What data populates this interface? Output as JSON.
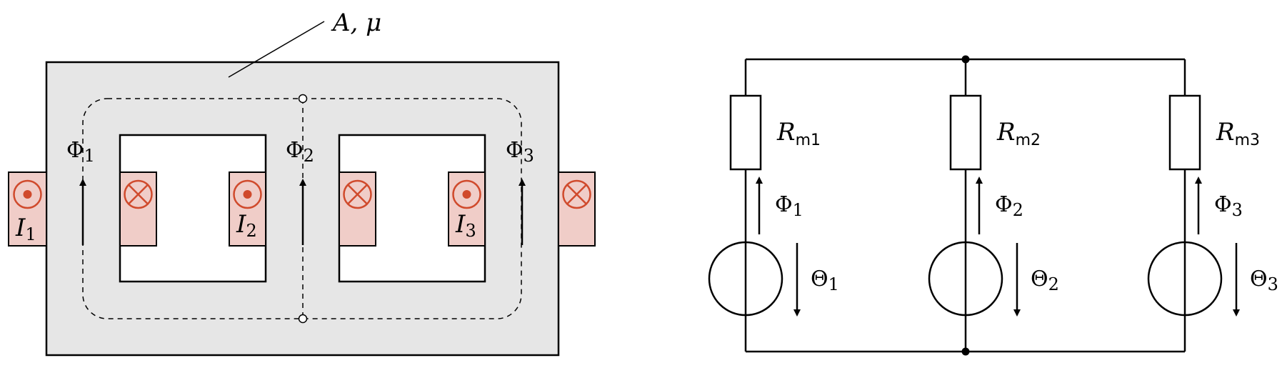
{
  "colors": {
    "core_fill": "#e6e6e6",
    "coil_fill": "#f0cdc8",
    "coil_symbol": "#d04a2c",
    "line": "#000000"
  },
  "core_label": "A, μ",
  "core_fluxes": [
    {
      "sym": "Φ",
      "sub": "1"
    },
    {
      "sym": "Φ",
      "sub": "2"
    },
    {
      "sym": "Φ",
      "sub": "3"
    }
  ],
  "currents": [
    {
      "sym": "I",
      "sub": "1"
    },
    {
      "sym": "I",
      "sub": "2"
    },
    {
      "sym": "I",
      "sub": "3"
    }
  ],
  "circuit": {
    "resistors": [
      {
        "sym": "R",
        "sub": "m1"
      },
      {
        "sym": "R",
        "sub": "m2"
      },
      {
        "sym": "R",
        "sub": "m3"
      }
    ],
    "fluxes": [
      {
        "sym": "Φ",
        "sub": "1"
      },
      {
        "sym": "Φ",
        "sub": "2"
      },
      {
        "sym": "Φ",
        "sub": "3"
      }
    ],
    "sources": [
      {
        "sym": "Θ",
        "sub": "1"
      },
      {
        "sym": "Θ",
        "sub": "2"
      },
      {
        "sym": "Θ",
        "sub": "3"
      }
    ]
  }
}
